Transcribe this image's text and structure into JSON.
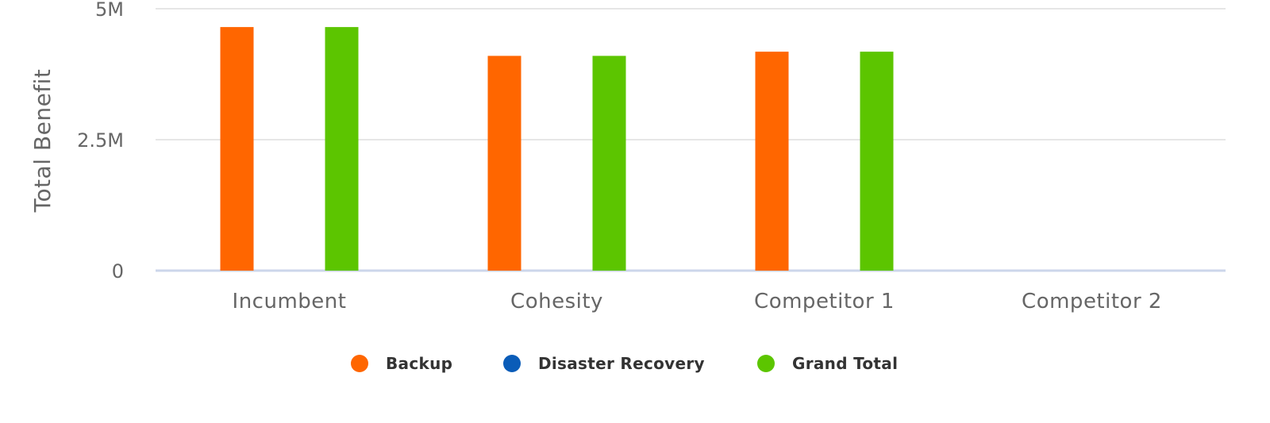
{
  "chart_data": {
    "type": "bar",
    "title": "",
    "xlabel": "",
    "ylabel": "Total Benefit",
    "categories": [
      "Incumbent",
      "Cohesity",
      "Competitor 1",
      "Competitor 2"
    ],
    "series": [
      {
        "name": "Backup",
        "color": "#ff6600",
        "values": [
          4650000,
          4100000,
          4180000,
          0
        ]
      },
      {
        "name": "Disaster Recovery",
        "color": "#0a5cb8",
        "values": [
          0,
          0,
          0,
          0
        ]
      },
      {
        "name": "Grand Total",
        "color": "#5cc500",
        "values": [
          4650000,
          4100000,
          4180000,
          0
        ]
      }
    ],
    "yticks": [
      {
        "value": 0,
        "label": "0"
      },
      {
        "value": 2500000,
        "label": "2.5M"
      },
      {
        "value": 5000000,
        "label": "5M"
      }
    ],
    "ylim": [
      0,
      5000000
    ],
    "grid": true,
    "legend_position": "bottom-center"
  }
}
